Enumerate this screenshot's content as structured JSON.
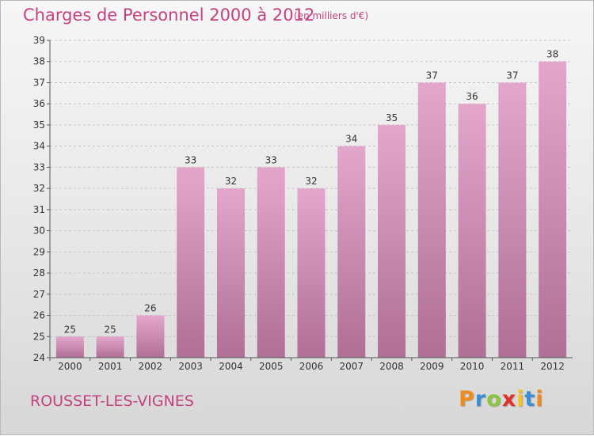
{
  "header": {
    "title": "Charges de Personnel 2000 à 2012",
    "subtitle": "(en milliers d'€)"
  },
  "footer": {
    "location": "ROUSSET-LES-VIGNES",
    "brand_letters": [
      "P",
      "r",
      "o",
      "x",
      "i",
      "t",
      "i"
    ],
    "brand_colors": [
      "#f08a1c",
      "#3a8fd4",
      "#8cc63f",
      "#e0302b",
      "#f7c21a",
      "#3a8fd4",
      "#f08a1c"
    ]
  },
  "colors": {
    "bar_top": "#e3a7cc",
    "bar_bottom": "#b06f95",
    "accent": "#c4417f"
  },
  "chart_data": {
    "type": "bar",
    "categories": [
      "2000",
      "2001",
      "2002",
      "2003",
      "2004",
      "2005",
      "2006",
      "2007",
      "2008",
      "2009",
      "2010",
      "2011",
      "2012"
    ],
    "values": [
      25,
      25,
      26,
      33,
      32,
      33,
      32,
      34,
      35,
      37,
      36,
      37,
      38
    ],
    "ylim": [
      24,
      39
    ],
    "yticks": [
      24,
      25,
      26,
      27,
      28,
      29,
      30,
      31,
      32,
      33,
      34,
      35,
      36,
      37,
      38,
      39
    ],
    "grid": true,
    "data_labels": true
  }
}
